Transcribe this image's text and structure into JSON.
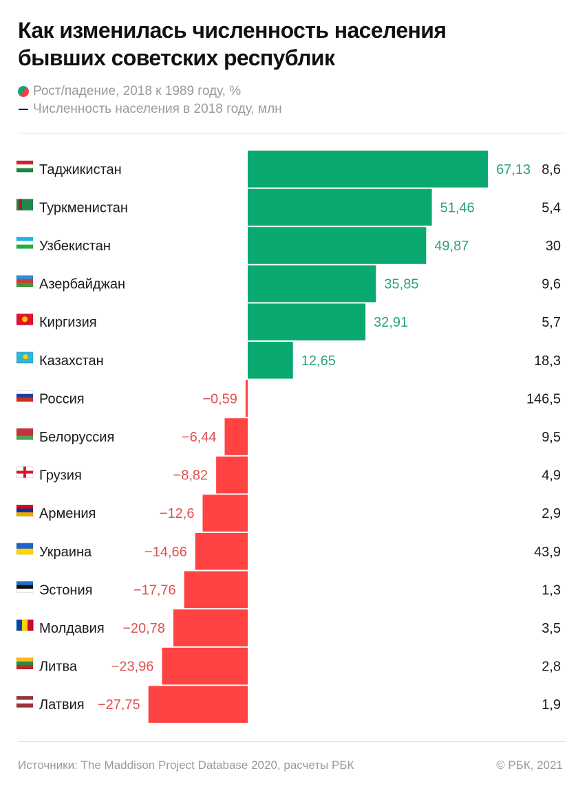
{
  "header": {
    "title_line1": "Как изменилась численность населения",
    "title_line2": "бывших советских республик"
  },
  "legend": {
    "growth_label": "Рост/падение, 2018 к 1989 году, %",
    "population_label": "Численность населения в 2018 году, млн"
  },
  "footer": {
    "source": "Источники: The Maddison Project Database 2020, расчеты РБК",
    "copyright": "©  РБК, 2021"
  },
  "colors": {
    "positive": "#0aa970",
    "negative": "#ff4343",
    "positive_label": "#2aa37a",
    "negative_label": "#e0504f"
  },
  "chart_data": {
    "type": "bar",
    "orientation": "horizontal",
    "title": "Как изменилась численность населения бывших советских республик",
    "xlabel": "Рост/падение, 2018 к 1989 году, %",
    "ylabel": "",
    "xlim": [
      -27.75,
      67.13
    ],
    "grid": false,
    "legend_position": "top-left",
    "categories": [
      "Таджикистан",
      "Туркменистан",
      "Узбекистан",
      "Азербайджан",
      "Киргизия",
      "Казахстан",
      "Россия",
      "Белоруссия",
      "Грузия",
      "Армения",
      "Украина",
      "Эстония",
      "Молдавия",
      "Литва",
      "Латвия"
    ],
    "flags": [
      "flag-tajikistan",
      "flag-turkmenistan",
      "flag-uzbekistan",
      "flag-azerbaijan",
      "flag-kyrgyzstan",
      "flag-kazakhstan",
      "flag-russia",
      "flag-belarus",
      "flag-georgia",
      "flag-armenia",
      "flag-ukraine",
      "flag-estonia",
      "flag-moldova",
      "flag-lithuania",
      "flag-latvia"
    ],
    "series": [
      {
        "name": "Рост/падение, 2018 к 1989 году, %",
        "values": [
          67.13,
          51.46,
          49.87,
          35.85,
          32.91,
          12.65,
          -0.59,
          -6.44,
          -8.82,
          -12.6,
          -14.66,
          -17.76,
          -20.78,
          -23.96,
          -27.75
        ],
        "labels": [
          "67,13",
          "51,46",
          "49,87",
          "35,85",
          "32,91",
          "12,65",
          "−0,59",
          "−6,44",
          "−8,82",
          "−12,6",
          "−14,66",
          "−17,76",
          "−20,78",
          "−23,96",
          "−27,75"
        ]
      },
      {
        "name": "Численность населения в 2018 году, млн",
        "values": [
          8.6,
          5.4,
          30,
          9.6,
          5.7,
          18.3,
          146.5,
          9.5,
          4.9,
          2.9,
          43.9,
          1.3,
          3.5,
          2.8,
          1.9
        ],
        "labels": [
          "8,6",
          "5,4",
          "30",
          "9,6",
          "5,7",
          "18,3",
          "146,5",
          "9,5",
          "4,9",
          "2,9",
          "43,9",
          "1,3",
          "3,5",
          "2,8",
          "1,9"
        ]
      }
    ]
  }
}
